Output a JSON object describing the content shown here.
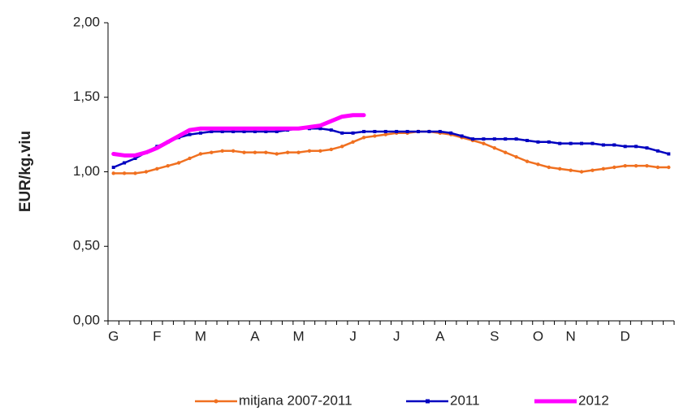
{
  "chart_data": {
    "type": "line",
    "y_label": "EUR/kg.viu",
    "categories": [
      "G",
      null,
      null,
      null,
      "F",
      null,
      null,
      null,
      "M",
      null,
      null,
      null,
      null,
      "A",
      null,
      null,
      null,
      "M",
      null,
      null,
      null,
      null,
      "J",
      null,
      null,
      null,
      "J",
      null,
      null,
      null,
      "A",
      null,
      null,
      null,
      null,
      "S",
      null,
      null,
      null,
      "O",
      null,
      null,
      "N",
      null,
      null,
      null,
      null,
      "D",
      null,
      null,
      null,
      null
    ],
    "series": [
      {
        "name": "mitjana 2007-2011",
        "color": "#f07020",
        "marker": "circle",
        "values": [
          0.99,
          0.99,
          0.99,
          1.0,
          1.02,
          1.04,
          1.06,
          1.09,
          1.12,
          1.13,
          1.14,
          1.14,
          1.13,
          1.13,
          1.13,
          1.12,
          1.13,
          1.13,
          1.14,
          1.14,
          1.15,
          1.17,
          1.2,
          1.23,
          1.24,
          1.25,
          1.26,
          1.26,
          1.27,
          1.27,
          1.26,
          1.25,
          1.23,
          1.21,
          1.19,
          1.16,
          1.13,
          1.1,
          1.07,
          1.05,
          1.03,
          1.02,
          1.01,
          1.0,
          1.01,
          1.02,
          1.03,
          1.04,
          1.04,
          1.04,
          1.03,
          1.03
        ]
      },
      {
        "name": "2011",
        "color": "#0000c0",
        "marker": "square",
        "values": [
          1.03,
          1.06,
          1.09,
          1.13,
          1.17,
          1.2,
          1.23,
          1.25,
          1.26,
          1.27,
          1.27,
          1.27,
          1.27,
          1.27,
          1.27,
          1.27,
          1.28,
          1.29,
          1.29,
          1.29,
          1.28,
          1.26,
          1.26,
          1.27,
          1.27,
          1.27,
          1.27,
          1.27,
          1.27,
          1.27,
          1.27,
          1.26,
          1.24,
          1.22,
          1.22,
          1.22,
          1.22,
          1.22,
          1.21,
          1.2,
          1.2,
          1.19,
          1.19,
          1.19,
          1.19,
          1.18,
          1.18,
          1.17,
          1.17,
          1.16,
          1.14,
          1.12
        ]
      },
      {
        "name": "2012",
        "color": "#ff00ff",
        "marker": "none",
        "values": [
          1.12,
          1.11,
          1.11,
          1.13,
          1.16,
          1.2,
          1.24,
          1.28,
          1.29,
          1.29,
          1.29,
          1.29,
          1.29,
          1.29,
          1.29,
          1.29,
          1.29,
          1.29,
          1.3,
          1.31,
          1.34,
          1.37,
          1.38,
          1.38,
          null,
          null,
          null,
          null,
          null,
          null,
          null,
          null,
          null,
          null,
          null,
          null,
          null,
          null,
          null,
          null,
          null,
          null,
          null,
          null,
          null,
          null,
          null,
          null,
          null,
          null,
          null,
          null
        ]
      }
    ],
    "ylim": [
      0,
      2
    ],
    "yticks": [
      {
        "value": 0,
        "label": "0,00"
      },
      {
        "value": 0.5,
        "label": "0,50"
      },
      {
        "value": 1,
        "label": "1,00"
      },
      {
        "value": 1.5,
        "label": "1,50"
      },
      {
        "value": 2,
        "label": "2,00"
      }
    ],
    "legend": "bottom"
  }
}
